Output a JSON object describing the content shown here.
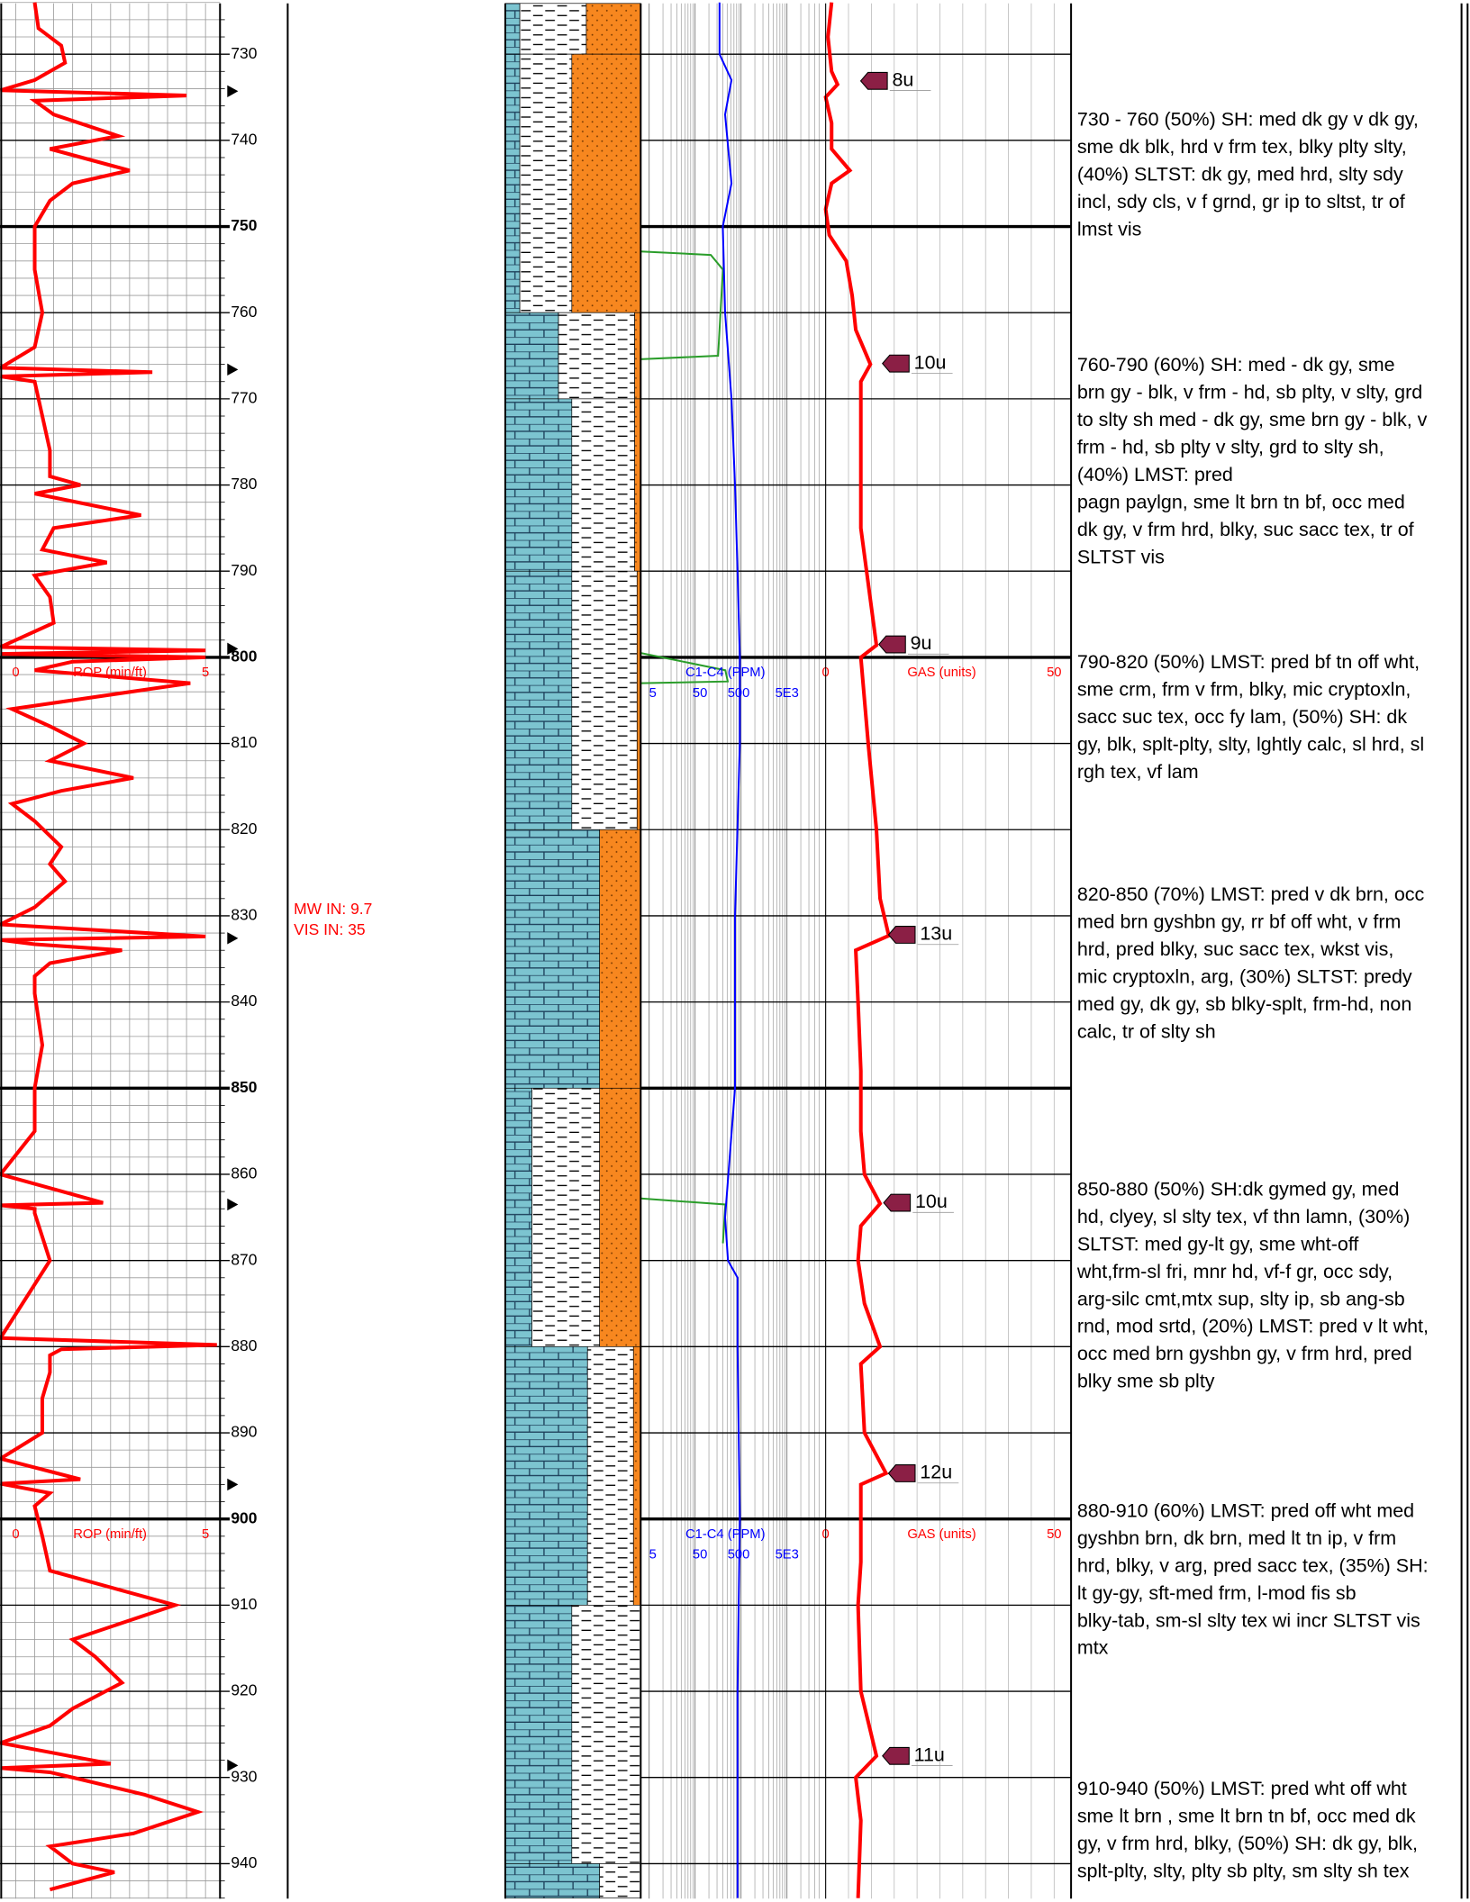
{
  "depth_labels": [
    730,
    740,
    750,
    760,
    770,
    780,
    790,
    800,
    810,
    820,
    830,
    840,
    850,
    860,
    870,
    880,
    890,
    900,
    910,
    920,
    930,
    940
  ],
  "headers": [
    {
      "rop_min": "0",
      "rop_title": "ROP (min/ft)",
      "rop_max": "5",
      "c1c4_title": "C1-C4 (PPM)",
      "c1c4_ticks": [
        "5",
        "50",
        "500",
        "5E3"
      ],
      "gas_min": "0",
      "gas_title": "GAS (units)",
      "gas_max": "50"
    },
    {
      "rop_min": "0",
      "rop_title": "ROP (min/ft)",
      "rop_max": "5",
      "c1c4_title": "C1-C4 (PPM)",
      "c1c4_ticks": [
        "5",
        "50",
        "500",
        "5E3"
      ],
      "gas_min": "0",
      "gas_title": "GAS (units)",
      "gas_max": "50"
    }
  ],
  "remarks": [
    "MW IN: 9.7",
    "VIS IN: 35"
  ],
  "gas_peaks": [
    "8u",
    "10u",
    "9u",
    "13u",
    "10u",
    "12u",
    "11u"
  ],
  "descriptions": [
    {
      "lines": [
        "730 - 760 (50%) SH: med dk gy v dk gy,",
        "sme dk blk, hrd v frm tex, blky plty slty,",
        "(40%) SLTST: dk gy, med hrd, slty sdy",
        "incl, sdy cls, v f grnd, gr ip to sltst, tr of",
        "lmst vis"
      ]
    },
    {
      "lines": [
        "760-790 (60%) SH: med - dk gy, sme",
        "brn gy - blk, v frm - hd, sb plty, v slty, grd",
        "to slty sh med - dk gy, sme brn gy - blk, v",
        "frm - hd, sb plty v slty, grd to slty sh,",
        "(40%) LMST: pred",
        "pagn paylgn, sme lt brn tn bf, occ med",
        "dk gy, v frm hrd, blky, suc sacc tex, tr of",
        "SLTST vis"
      ]
    },
    {
      "lines": [
        "790-820 (50%) LMST: pred bf tn off wht,",
        "sme crm, frm v frm, blky, mic cryptoxln,",
        "sacc suc tex, occ fy lam, (50%) SH: dk",
        "gy, blk, splt-plty, slty, lghtly calc, sl hrd, sl",
        "rgh tex, vf lam"
      ]
    },
    {
      "lines": [
        "820-850 (70%) LMST: pred v dk brn, occ",
        "med brn gyshbn gy, rr bf off wht, v frm",
        "hrd, pred blky, suc sacc tex, wkst vis,",
        "mic cryptoxln, arg, (30%) SLTST: predy",
        "med gy, dk gy, sb blky-splt, frm-hd, non",
        "calc, tr of slty sh"
      ]
    },
    {
      "lines": [
        "850-880 (50%) SH:dk gymed gy, med",
        "hd, clyey, sl slty tex, vf thn lamn, (30%)",
        "SLTST: med gy-lt gy, sme wht-off",
        "wht,frm-sl fri, mnr hd, vf-f gr, occ sdy,",
        "arg-silc cmt,mtx sup, slty ip, sb ang-sb",
        "rnd, mod srtd, (20%) LMST: pred v lt wht,",
        "occ med brn gyshbn gy, v frm hrd, pred",
        "blky sme sb plty"
      ]
    },
    {
      "lines": [
        "880-910 (60%) LMST: pred off wht med",
        "gyshbn brn, dk brn, med lt tn ip, v frm",
        "hrd, blky, v arg, pred sacc tex, (35%) SH:",
        "lt gy-gy, sft-med frm, l-mod fis sb",
        "blky-tab, sm-sl slty tex wi incr SLTST vis",
        "mtx"
      ]
    },
    {
      "lines": [
        "910-940 (50%) LMST: pred wht off wht",
        "sme lt brn , sme lt brn tn bf, occ med dk",
        "gy, v frm hrd, blky, (50%) SH: dk gy, blk,",
        "splt-plty, slty, plty sb plty, sm slty sh tex"
      ]
    }
  ],
  "rop": {
    "color": "#ff0000",
    "xlim": [
      0,
      5
    ],
    "depth": [
      724,
      727,
      729,
      731,
      733,
      734.2,
      734.8,
      735.4,
      737,
      739.5,
      741,
      743.5,
      745,
      747,
      750,
      755,
      760,
      764,
      766.4,
      766.9,
      767.4,
      768,
      772,
      776,
      779,
      780,
      781,
      783.5,
      785,
      787.5,
      789,
      790.5,
      793,
      796,
      798.8,
      799.2,
      799.6,
      800,
      800.5,
      801.5,
      803,
      806,
      808,
      810,
      812,
      814,
      815.5,
      817,
      819,
      822,
      824,
      826,
      829,
      831,
      832.4,
      832.8,
      833.3,
      834,
      835.5,
      837,
      839,
      845,
      850,
      855,
      860,
      863.3,
      863.6,
      864,
      864.5,
      870,
      879,
      879.8,
      880.3,
      881,
      883,
      886,
      890,
      893,
      895.4,
      895.9,
      896.4,
      897,
      898.5,
      902,
      906,
      910,
      914,
      916,
      919,
      922,
      924,
      926,
      928.4,
      928.9,
      929.4,
      930,
      932,
      934,
      936.5,
      938,
      940,
      941,
      943,
      944
    ],
    "values": [
      0.5,
      0.6,
      1.2,
      1.3,
      0.5,
      -0.4,
      4.5,
      0.5,
      1.0,
      2.7,
      0.9,
      3.0,
      1.5,
      0.9,
      0.5,
      0.5,
      0.7,
      0.5,
      -0.4,
      3.6,
      -0.4,
      0.5,
      0.7,
      0.9,
      0.9,
      1.7,
      0.5,
      3.3,
      1.0,
      0.7,
      2.4,
      0.5,
      0.9,
      1.0,
      -0.4,
      5.0,
      -0.4,
      5.0,
      1.5,
      0.5,
      4.6,
      -0.1,
      0.9,
      1.8,
      0.9,
      3.1,
      1.2,
      -0.1,
      0.5,
      1.2,
      0.9,
      1.3,
      0.5,
      -0.4,
      5.0,
      -0.4,
      0.5,
      2.8,
      0.9,
      0.5,
      0.5,
      0.7,
      0.5,
      0.5,
      -0.4,
      2.3,
      -0.4,
      0.5,
      0.5,
      0.9,
      -0.4,
      5.3,
      1.2,
      0.9,
      0.9,
      0.7,
      0.7,
      -0.4,
      1.7,
      -0.4,
      0.2,
      0.9,
      0.5,
      0.7,
      0.9,
      4.2,
      1.5,
      2.1,
      2.8,
      1.5,
      0.9,
      -0.4,
      2.5,
      -0.4,
      0.9,
      1.5,
      3.4,
      4.8,
      3.1,
      0.9,
      1.5,
      2.6,
      0.9
    ]
  },
  "gas": {
    "color": "#ff0000",
    "xlim": [
      0,
      50
    ],
    "depth": [
      724,
      728,
      732,
      733.5,
      735,
      738,
      741,
      743.5,
      745,
      748,
      751,
      754,
      758,
      762,
      766,
      768,
      775,
      785,
      798.6,
      800,
      810,
      820,
      828,
      832.3,
      834,
      840,
      848,
      855,
      860,
      863.4,
      866,
      870,
      875,
      880,
      882,
      890,
      894.7,
      896,
      900,
      905,
      910,
      920,
      927.5,
      930,
      935,
      944
    ],
    "values": [
      1.3,
      0.5,
      1.3,
      2.6,
      0,
      1.3,
      1.3,
      5.3,
      1.3,
      0,
      0.8,
      4.5,
      5.8,
      6.6,
      9.8,
      7.7,
      7.7,
      7.7,
      11.1,
      7.7,
      9.3,
      11.1,
      11.9,
      13.8,
      6.6,
      7.1,
      7.7,
      7.7,
      8.5,
      11.9,
      7.7,
      7.1,
      8.5,
      11.9,
      7.7,
      8.5,
      13.2,
      7.7,
      7.7,
      7.7,
      7.1,
      7.7,
      11.1,
      6.6,
      7.7,
      7.1
    ]
  },
  "c1c4": {
    "color": "#0000ff",
    "log": true,
    "depth": [
      724,
      730,
      733,
      737,
      745,
      750,
      760,
      770,
      780,
      790,
      800,
      810,
      830,
      850,
      865,
      870,
      872,
      880,
      900,
      920,
      944
    ],
    "values": [
      170,
      170,
      310,
      225,
      310,
      200,
      225,
      310,
      370,
      420,
      470,
      470,
      370,
      370,
      225,
      260,
      420,
      420,
      470,
      420,
      420
    ]
  }
}
